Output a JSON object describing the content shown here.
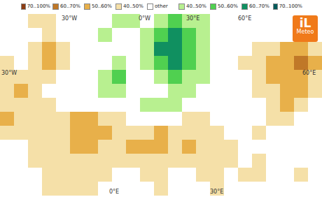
{
  "chart_data": {
    "type": "heatmap",
    "color_bar": {
      "values": [
        -4,
        -3,
        -2,
        -1,
        0,
        1,
        2,
        3,
        4
      ],
      "labels": [
        "70..100%",
        "60..70%",
        "50..60%",
        "40..50%",
        "other",
        "40..50%",
        "50..60%",
        "60..70%",
        "70..100%"
      ],
      "colors": [
        "#8c3c14",
        "#c07828",
        "#e8b04a",
        "#f5e0a8",
        "#ffffff",
        "#b8f090",
        "#50d050",
        "#109060",
        "#005a5a"
      ]
    },
    "cells": [
      [
        0,
        0,
        -1,
        -1,
        0,
        0,
        0,
        0,
        1,
        1,
        0,
        1,
        2,
        1,
        1,
        0,
        0,
        0,
        0,
        0,
        0,
        0,
        0
      ],
      [
        0,
        0,
        0,
        -1,
        0,
        0,
        0,
        1,
        0,
        0,
        1,
        2,
        3,
        2,
        1,
        0,
        0,
        0,
        0,
        0,
        0,
        0,
        0
      ],
      [
        0,
        0,
        -1,
        -2,
        -1,
        0,
        0,
        0,
        0,
        0,
        1,
        3,
        3,
        2,
        1,
        0,
        0,
        0,
        -1,
        -1,
        -2,
        -2,
        -1
      ],
      [
        -1,
        0,
        -1,
        -2,
        -1,
        0,
        0,
        0,
        1,
        0,
        1,
        2,
        3,
        2,
        1,
        0,
        0,
        -1,
        -1,
        -2,
        -2,
        -3,
        -2
      ],
      [
        -1,
        -1,
        -1,
        -1,
        0,
        0,
        0,
        1,
        2,
        0,
        0,
        1,
        2,
        1,
        1,
        0,
        0,
        0,
        -1,
        -2,
        -2,
        -2,
        -1
      ],
      [
        -1,
        -2,
        -1,
        0,
        0,
        0,
        0,
        1,
        1,
        0,
        0,
        0,
        1,
        1,
        0,
        0,
        0,
        0,
        -1,
        -1,
        -2,
        -2,
        -1
      ],
      [
        -1,
        -1,
        -1,
        -1,
        0,
        0,
        0,
        0,
        0,
        0,
        1,
        1,
        1,
        0,
        0,
        0,
        0,
        0,
        0,
        -1,
        -2,
        -1,
        0
      ],
      [
        -2,
        -1,
        -1,
        -1,
        -1,
        -2,
        -2,
        -1,
        -1,
        0,
        0,
        0,
        0,
        -1,
        -1,
        0,
        0,
        0,
        0,
        -1,
        -1,
        0,
        0
      ],
      [
        -1,
        -1,
        -1,
        -1,
        -1,
        -2,
        -2,
        -2,
        -1,
        -1,
        -1,
        -2,
        -1,
        -1,
        -1,
        -1,
        0,
        0,
        -1,
        0,
        0,
        0,
        0
      ],
      [
        0,
        0,
        -1,
        -1,
        -1,
        -2,
        -2,
        -1,
        -1,
        -2,
        -2,
        -2,
        -1,
        -2,
        -1,
        -1,
        -1,
        0,
        0,
        0,
        0,
        0,
        0
      ],
      [
        0,
        0,
        -1,
        -1,
        -1,
        -1,
        -1,
        -1,
        -1,
        -1,
        -1,
        -1,
        -1,
        -1,
        -1,
        -1,
        -1,
        0,
        -1,
        0,
        0,
        0,
        0
      ],
      [
        0,
        0,
        0,
        -1,
        -1,
        -1,
        -1,
        -1,
        0,
        0,
        -1,
        -1,
        0,
        0,
        -1,
        -1,
        0,
        -1,
        -1,
        0,
        0,
        -1,
        0
      ],
      [
        0,
        0,
        0,
        -1,
        -1,
        -1,
        -1,
        0,
        0,
        0,
        0,
        -1,
        0,
        0,
        0,
        -1,
        0,
        0,
        0,
        0,
        0,
        0,
        0
      ]
    ],
    "graticule_labels": {
      "top": [
        "30°W",
        "0°W",
        "30°E",
        "60°E"
      ],
      "left": [
        "30°W"
      ],
      "right": [
        "60°E"
      ],
      "bottom": [
        "0°E",
        "30°E"
      ]
    },
    "logo": [
      "iL",
      "Meteo"
    ]
  }
}
